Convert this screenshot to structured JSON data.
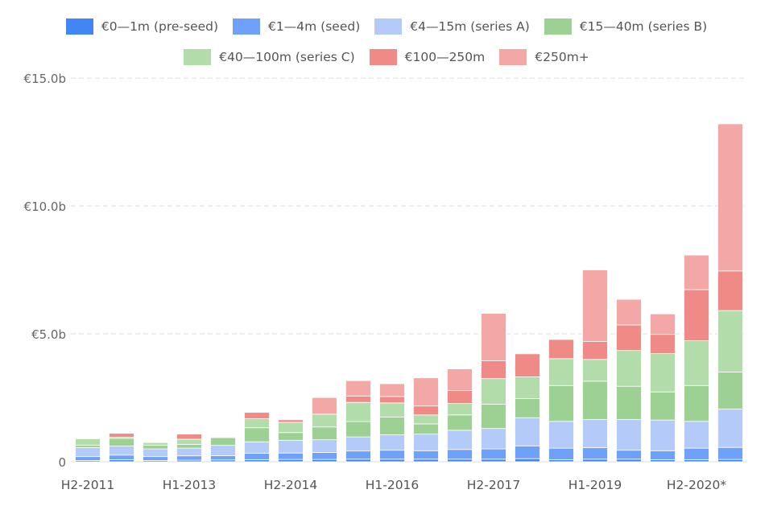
{
  "chart_data": {
    "type": "bar",
    "stacked": true,
    "title": "",
    "xlabel": "",
    "ylabel": "",
    "categories": [
      "H2-2011",
      "H1-2012",
      "H2-2012",
      "H1-2013",
      "H2-2013",
      "H1-2014",
      "H2-2014",
      "H1-2015",
      "H2-2015",
      "H1-2016",
      "H2-2016",
      "H1-2017",
      "H2-2017",
      "H1-2018",
      "H2-2018",
      "H1-2019",
      "H2-2019",
      "H1-2020",
      "H2-2020*",
      "H1-2021"
    ],
    "x_tick_labels": [
      "H2-2011",
      "H1-2013",
      "H2-2014",
      "H1-2016",
      "H2-2017",
      "H1-2019",
      "H2-2020*"
    ],
    "y_tick_labels": [
      "0",
      "€5.0b",
      "€10.0b",
      "€15.0b"
    ],
    "y_ticks": [
      0,
      5,
      10,
      15
    ],
    "ylim": [
      0,
      15.6
    ],
    "unit": "€b",
    "grid": true,
    "legend_position": "top",
    "legend_rows": [
      [
        0,
        1,
        2,
        3
      ],
      [
        4,
        5,
        6
      ]
    ],
    "series": [
      {
        "name": "€0—1m (pre-seed)",
        "color": "#4285f4",
        "values": [
          0.05,
          0.08,
          0.05,
          0.06,
          0.07,
          0.08,
          0.09,
          0.09,
          0.1,
          0.1,
          0.1,
          0.1,
          0.1,
          0.12,
          0.08,
          0.1,
          0.1,
          0.08,
          0.08,
          0.09
        ]
      },
      {
        "name": "€1—4m (seed)",
        "color": "#70a1f8",
        "values": [
          0.15,
          0.18,
          0.15,
          0.17,
          0.17,
          0.25,
          0.25,
          0.27,
          0.32,
          0.35,
          0.33,
          0.38,
          0.4,
          0.5,
          0.45,
          0.45,
          0.35,
          0.35,
          0.45,
          0.47
        ]
      },
      {
        "name": "€4—15m (series A)",
        "color": "#b4cbfa",
        "values": [
          0.35,
          0.35,
          0.3,
          0.3,
          0.4,
          0.45,
          0.5,
          0.5,
          0.55,
          0.6,
          0.65,
          0.75,
          0.8,
          1.1,
          1.05,
          1.1,
          1.2,
          1.2,
          1.05,
          1.5
        ]
      },
      {
        "name": "€15—40m (series B)",
        "color": "#9cd193",
        "values": [
          0.1,
          0.3,
          0.15,
          0.15,
          0.3,
          0.55,
          0.3,
          0.5,
          0.6,
          0.7,
          0.4,
          0.6,
          0.95,
          0.75,
          1.4,
          1.5,
          1.3,
          1.1,
          1.4,
          1.45
        ]
      },
      {
        "name": "€40—100m (series C)",
        "color": "#b2ddab",
        "values": [
          0.25,
          0.05,
          0.1,
          0.2,
          0.03,
          0.35,
          0.4,
          0.5,
          0.75,
          0.55,
          0.35,
          0.45,
          1.0,
          0.85,
          1.05,
          0.85,
          1.4,
          1.5,
          1.75,
          2.4
        ]
      },
      {
        "name": "€100—250m",
        "color": "#f08a86",
        "values": [
          0,
          0.15,
          0,
          0.2,
          0,
          0.25,
          0.1,
          0,
          0.25,
          0.25,
          0.35,
          0.5,
          0.7,
          0.9,
          0.75,
          0.7,
          1.0,
          0.75,
          2.0,
          1.55
        ]
      },
      {
        "name": "€250m+",
        "color": "#f3a8a6",
        "values": [
          0,
          0,
          0,
          0,
          0,
          0,
          0,
          0.65,
          0.6,
          0.5,
          1.1,
          0.85,
          1.85,
          0,
          0,
          2.8,
          1.0,
          0.8,
          1.35,
          5.75
        ]
      }
    ]
  }
}
